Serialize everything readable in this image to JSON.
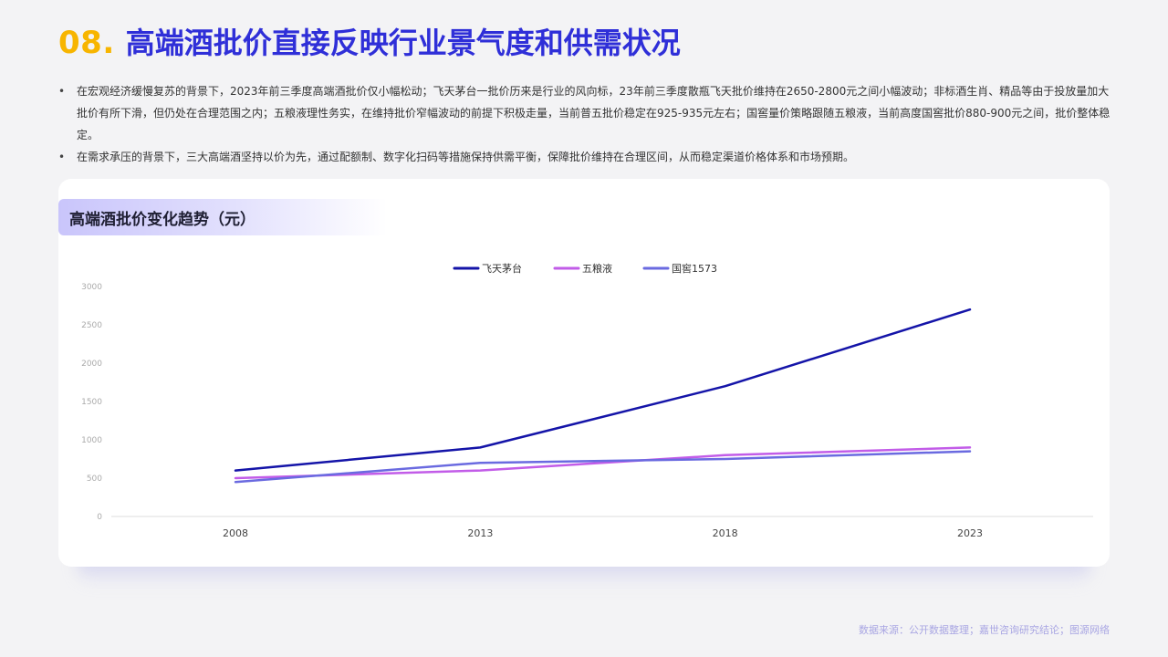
{
  "header": {
    "number": "08.",
    "title": "高端酒批价直接反映行业景气度和供需状况"
  },
  "bullets": [
    "在宏观经济缓慢复苏的背景下，2023年前三季度高端酒批价仅小幅松动；飞天茅台一批价历来是行业的风向标，23年前三季度散瓶飞天批价维持在2650-2800元之间小幅波动；非标酒生肖、精品等由于投放量加大批价有所下滑，但仍处在合理范围之内；五粮液理性务实，在维持批价窄幅波动的前提下积极走量，当前普五批价稳定在925-935元左右；国窖量价策略跟随五粮液，当前高度国窖批价880-900元之间，批价整体稳定。",
    "在需求承压的背景下，三大高端酒坚持以价为先，通过配额制、数字化扫码等措施保持供需平衡，保障批价维持在合理区间，从而稳定渠道价格体系和市场预期。"
  ],
  "card": {
    "title": "高端酒批价变化趋势（元）"
  },
  "chart_data": {
    "type": "line",
    "title": "高端酒批价变化趋势（元）",
    "xlabel": "",
    "ylabel": "",
    "categories": [
      "2008",
      "2013",
      "2018",
      "2023"
    ],
    "ylim": [
      0,
      3000
    ],
    "yticks": [
      "0",
      "500",
      "1000",
      "1500",
      "2000",
      "2500",
      "3000"
    ],
    "grid": false,
    "legend_position": "top-center",
    "series": [
      {
        "name": "飞天茅台",
        "values": [
          600,
          900,
          1700,
          2700
        ],
        "color": "#1414a8"
      },
      {
        "name": "五粮液",
        "values": [
          500,
          600,
          800,
          900
        ],
        "color": "#c25ce8"
      },
      {
        "name": "国窖1573",
        "values": [
          450,
          700,
          750,
          850
        ],
        "color": "#6a6ae0"
      }
    ]
  },
  "footer": {
    "source": "数据来源：公开数据整理；嘉世咨询研究结论；图源网络"
  }
}
